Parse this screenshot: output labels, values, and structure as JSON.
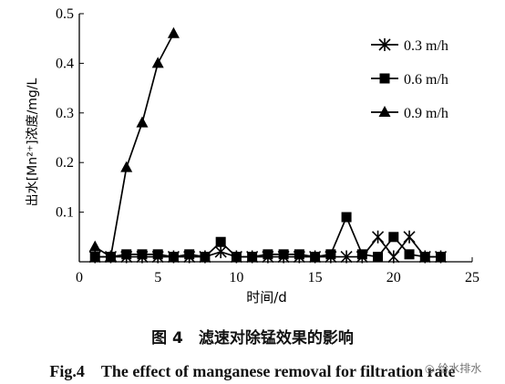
{
  "chart_data": {
    "type": "line",
    "xlabel": "时间/d",
    "ylabel": "出水[Mn²⁺]浓度/mg/L",
    "xlim": [
      0,
      25
    ],
    "ylim": [
      0,
      0.5
    ],
    "xticks": [
      "0",
      "5",
      "10",
      "15",
      "20",
      "25"
    ],
    "yticks": [
      "0.1",
      "0.2",
      "0.3",
      "0.4",
      "0.5"
    ],
    "grid": false,
    "legend_position": "top-right",
    "series": [
      {
        "name": "0.3 m/h",
        "marker": "star",
        "x": [
          1,
          2,
          3,
          4,
          5,
          6,
          7,
          8,
          9,
          10,
          11,
          12,
          13,
          14,
          15,
          16,
          17,
          18,
          19,
          20,
          21,
          22,
          23
        ],
        "y": [
          0.01,
          0.01,
          0.01,
          0.01,
          0.01,
          0.01,
          0.01,
          0.01,
          0.02,
          0.01,
          0.01,
          0.01,
          0.01,
          0.01,
          0.01,
          0.01,
          0.01,
          0.01,
          0.05,
          0.01,
          0.05,
          0.01,
          0.01
        ]
      },
      {
        "name": "0.6 m/h",
        "marker": "square",
        "x": [
          1,
          2,
          3,
          4,
          5,
          6,
          7,
          8,
          9,
          10,
          11,
          12,
          13,
          14,
          15,
          16,
          17,
          18,
          19,
          20,
          21,
          22,
          23
        ],
        "y": [
          0.01,
          0.01,
          0.015,
          0.015,
          0.015,
          0.01,
          0.015,
          0.01,
          0.04,
          0.01,
          0.01,
          0.015,
          0.015,
          0.015,
          0.01,
          0.015,
          0.09,
          0.015,
          0.01,
          0.05,
          0.015,
          0.01,
          0.01
        ]
      },
      {
        "name": "0.9 m/h",
        "marker": "triangle",
        "x": [
          1,
          2,
          3,
          4,
          5,
          6
        ],
        "y": [
          0.03,
          0.01,
          0.19,
          0.28,
          0.4,
          0.46
        ]
      }
    ]
  },
  "caption_zh": "图 4　滤速对除锰效果的影响",
  "caption_en": "Fig.4　The effect of manganese removal for filtration rate",
  "watermark": "给水排水"
}
